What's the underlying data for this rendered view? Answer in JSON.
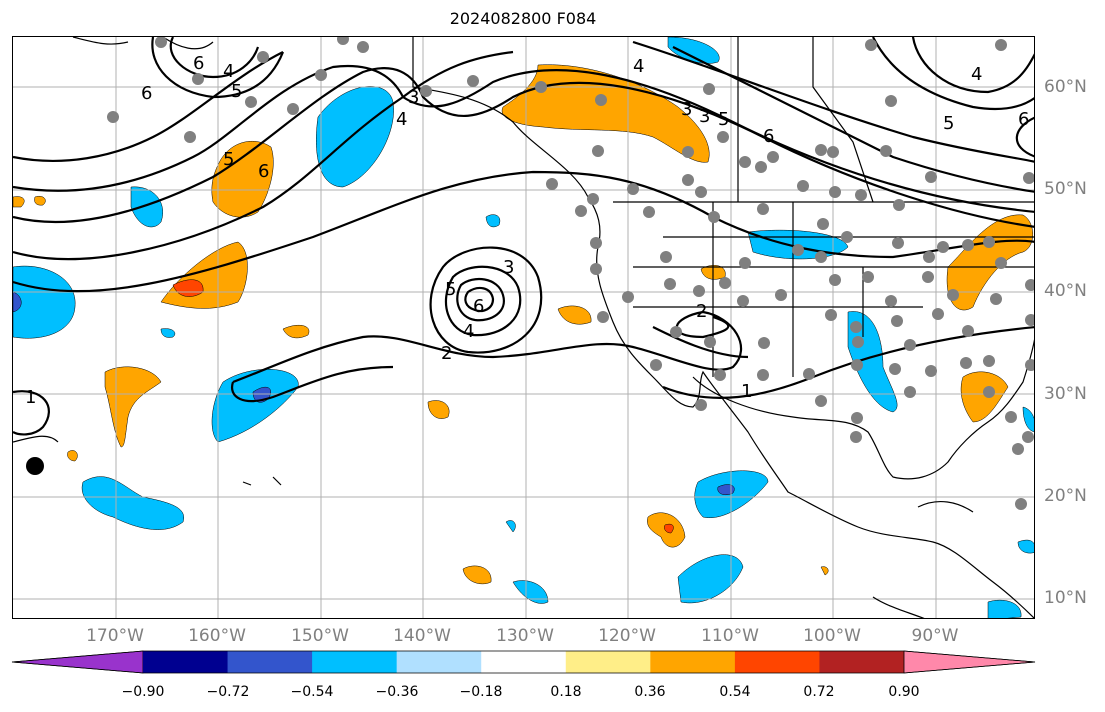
{
  "title": "2024082800 F084",
  "lat_labels": [
    "60°N",
    "50°N",
    "40°N",
    "30°N",
    "20°N",
    "10°N"
  ],
  "lon_labels": [
    "170°W",
    "160°W",
    "150°W",
    "140°W",
    "130°W",
    "120°W",
    "110°W",
    "100°W",
    "90°W"
  ],
  "contour_labels": [
    "6",
    "4",
    "5",
    "6",
    "5",
    "6",
    "4",
    "3",
    "3",
    "5",
    "6",
    "4",
    "5",
    "6",
    "4",
    "3",
    "6",
    "5",
    "4",
    "3",
    "2",
    "2",
    "1",
    "1"
  ],
  "colorbar": {
    "ticks": [
      "−0.90",
      "−0.72",
      "−0.54",
      "−0.36",
      "−0.18",
      "0.18",
      "0.36",
      "0.54",
      "0.72",
      "0.90"
    ],
    "colors": [
      "#9933cc",
      "#000090",
      "#3355cc",
      "#00bfff",
      "#b0e0ff",
      "#ffffff",
      "#ffee88",
      "#ffa500",
      "#ff4500",
      "#b22222",
      "#ff88aa"
    ]
  }
}
